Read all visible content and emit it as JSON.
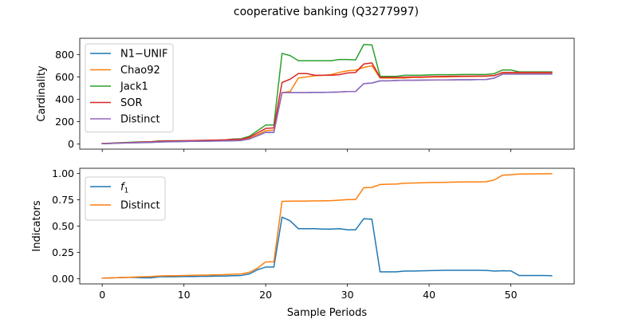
{
  "figure": {
    "title": "cooperative banking (Q3277997)"
  },
  "chart_data": [
    {
      "type": "line",
      "ylabel": "Cardinality",
      "xlabel": "",
      "xlim": [
        -2.75,
        57.75
      ],
      "ylim": [
        -45,
        945
      ],
      "xticks": [
        0,
        10,
        20,
        30,
        40,
        50
      ],
      "show_xticklabels": false,
      "yticks": [
        0,
        200,
        400,
        600,
        800
      ],
      "ytick_labels": [
        "0",
        "200",
        "400",
        "600",
        "800"
      ],
      "grid": false,
      "legend_position": "upper-left",
      "x": [
        0,
        1,
        2,
        3,
        4,
        5,
        6,
        7,
        8,
        9,
        10,
        11,
        12,
        13,
        14,
        15,
        16,
        17,
        18,
        19,
        20,
        21,
        22,
        23,
        24,
        25,
        26,
        27,
        28,
        29,
        30,
        31,
        32,
        33,
        34,
        35,
        36,
        37,
        38,
        39,
        40,
        41,
        42,
        43,
        44,
        45,
        46,
        47,
        48,
        49,
        50,
        51,
        52,
        53,
        54,
        55
      ],
      "series": [
        {
          "name": "N1−UNIF",
          "color": "#1f77b4",
          "values": [
            5,
            6,
            8,
            10,
            12,
            13,
            15,
            18,
            20,
            22,
            23,
            24,
            25,
            26,
            27,
            28,
            30,
            32,
            45,
            75,
            105,
            105,
            460,
            460,
            460,
            460,
            462,
            462,
            463,
            465,
            470,
            470,
            540,
            545,
            565,
            565,
            568,
            570,
            570,
            571,
            572,
            573,
            573,
            574,
            575,
            575,
            576,
            577,
            590,
            625,
            625,
            625,
            625,
            625,
            625,
            625
          ]
        },
        {
          "name": "Chao92",
          "color": "#ff7f0e",
          "values": [
            5,
            7,
            10,
            12,
            14,
            16,
            18,
            22,
            24,
            25,
            26,
            27,
            28,
            29,
            30,
            31,
            35,
            38,
            50,
            85,
            120,
            125,
            460,
            470,
            590,
            600,
            610,
            615,
            620,
            640,
            655,
            660,
            685,
            700,
            590,
            590,
            590,
            590,
            595,
            595,
            598,
            600,
            600,
            602,
            603,
            604,
            605,
            606,
            615,
            635,
            635,
            635,
            635,
            635,
            635,
            635
          ]
        },
        {
          "name": "Jack1",
          "color": "#2ca02c",
          "values": [
            5,
            8,
            12,
            15,
            18,
            20,
            22,
            28,
            30,
            30,
            30,
            31,
            32,
            33,
            35,
            37,
            45,
            48,
            70,
            120,
            170,
            170,
            810,
            790,
            745,
            745,
            745,
            745,
            745,
            755,
            755,
            752,
            890,
            885,
            605,
            605,
            605,
            615,
            615,
            615,
            618,
            620,
            620,
            620,
            622,
            622,
            622,
            622,
            630,
            662,
            662,
            645,
            645,
            645,
            645,
            645
          ]
        },
        {
          "name": "SOR",
          "color": "#d62728",
          "values": [
            5,
            7,
            10,
            12,
            15,
            18,
            20,
            26,
            28,
            28,
            30,
            32,
            33,
            34,
            36,
            38,
            42,
            44,
            60,
            100,
            140,
            145,
            550,
            580,
            630,
            630,
            615,
            615,
            615,
            620,
            635,
            640,
            715,
            725,
            595,
            595,
            595,
            598,
            600,
            600,
            602,
            604,
            605,
            606,
            607,
            607,
            608,
            608,
            612,
            640,
            640,
            640,
            640,
            640,
            640,
            640
          ]
        },
        {
          "name": "Distinct",
          "color": "#9467bd",
          "values": [
            3,
            5,
            8,
            10,
            12,
            14,
            16,
            20,
            22,
            22,
            24,
            25,
            26,
            26,
            28,
            29,
            31,
            33,
            45,
            75,
            105,
            105,
            460,
            460,
            460,
            460,
            462,
            462,
            463,
            465,
            470,
            470,
            540,
            545,
            565,
            565,
            568,
            570,
            570,
            571,
            572,
            573,
            573,
            574,
            575,
            575,
            576,
            577,
            590,
            625,
            625,
            625,
            625,
            625,
            625,
            625
          ]
        }
      ]
    },
    {
      "type": "line",
      "ylabel": "Indicators",
      "xlabel": "Sample Periods",
      "xlim": [
        -2.75,
        57.75
      ],
      "ylim": [
        -0.05,
        1.05
      ],
      "xticks": [
        0,
        10,
        20,
        30,
        40,
        50
      ],
      "xtick_labels": [
        "0",
        "10",
        "20",
        "30",
        "40",
        "50"
      ],
      "yticks": [
        0,
        0.25,
        0.5,
        0.75,
        1.0
      ],
      "ytick_labels": [
        "0.00",
        "0.25",
        "0.50",
        "0.75",
        "1.00"
      ],
      "grid": false,
      "legend_position": "upper-left",
      "x": [
        0,
        1,
        2,
        3,
        4,
        5,
        6,
        7,
        8,
        9,
        10,
        11,
        12,
        13,
        14,
        15,
        16,
        17,
        18,
        19,
        20,
        21,
        22,
        23,
        24,
        25,
        26,
        27,
        28,
        29,
        30,
        31,
        32,
        33,
        34,
        35,
        36,
        37,
        38,
        39,
        40,
        41,
        42,
        43,
        44,
        45,
        46,
        47,
        48,
        49,
        50,
        51,
        52,
        53,
        54,
        55
      ],
      "series": [
        {
          "name": "f1",
          "legend_label": "f",
          "legend_subscript": "1",
          "color": "#1f77b4",
          "values": [
            0.005,
            0.007,
            0.01,
            0.012,
            0.012,
            0.008,
            0.008,
            0.018,
            0.018,
            0.018,
            0.02,
            0.02,
            0.022,
            0.022,
            0.025,
            0.025,
            0.028,
            0.03,
            0.045,
            0.085,
            0.11,
            0.11,
            0.585,
            0.55,
            0.475,
            0.475,
            0.475,
            0.472,
            0.472,
            0.475,
            0.465,
            0.465,
            0.57,
            0.565,
            0.065,
            0.065,
            0.065,
            0.072,
            0.072,
            0.074,
            0.076,
            0.078,
            0.08,
            0.08,
            0.08,
            0.08,
            0.08,
            0.078,
            0.072,
            0.075,
            0.074,
            0.03,
            0.03,
            0.03,
            0.03,
            0.028
          ]
        },
        {
          "name": "Distinct",
          "legend_label": "Distinct",
          "color": "#ff7f0e",
          "values": [
            0.005,
            0.007,
            0.01,
            0.012,
            0.015,
            0.018,
            0.02,
            0.025,
            0.028,
            0.028,
            0.03,
            0.032,
            0.033,
            0.034,
            0.036,
            0.038,
            0.042,
            0.045,
            0.06,
            0.1,
            0.16,
            0.16,
            0.735,
            0.737,
            0.738,
            0.738,
            0.74,
            0.74,
            0.742,
            0.747,
            0.752,
            0.752,
            0.865,
            0.868,
            0.895,
            0.898,
            0.9,
            0.908,
            0.91,
            0.912,
            0.914,
            0.915,
            0.916,
            0.918,
            0.92,
            0.92,
            0.92,
            0.922,
            0.94,
            0.985,
            0.988,
            0.995,
            0.996,
            0.997,
            0.998,
            0.998
          ]
        }
      ]
    }
  ]
}
